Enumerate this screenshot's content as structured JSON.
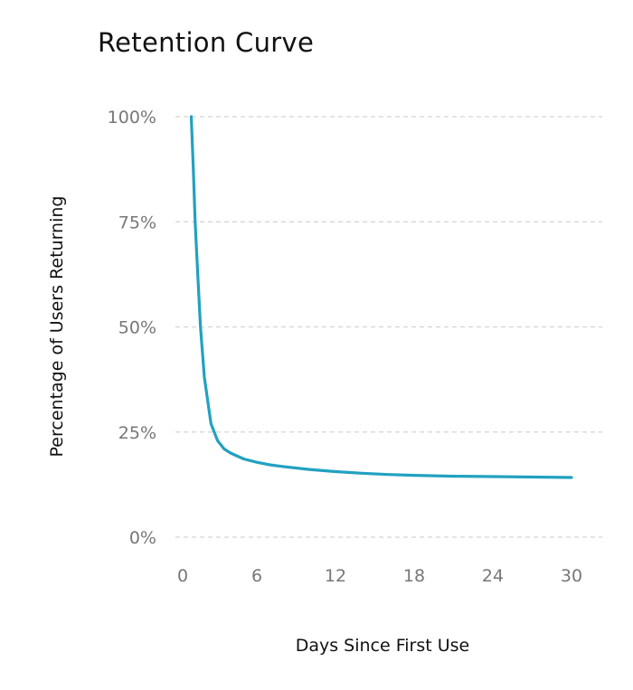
{
  "chart_data": {
    "type": "line",
    "title": "Retention Curve",
    "xlabel": "Days Since First Use",
    "ylabel": "Percentage of Users Returning",
    "xlim": [
      0,
      30
    ],
    "ylim": [
      0,
      100
    ],
    "xticks": [
      0,
      6,
      12,
      18,
      24,
      30
    ],
    "xtick_labels": [
      "0",
      "6",
      "12",
      "18",
      "24",
      "30"
    ],
    "yticks": [
      0,
      25,
      50,
      75,
      100
    ],
    "ytick_labels": [
      "0%",
      "25%",
      "50%",
      "75%",
      "100%"
    ],
    "grid": "horizontal dashed",
    "series": [
      {
        "name": "Retention",
        "color": "#22a1c0",
        "x": [
          1,
          1.15,
          1.3,
          1.5,
          1.7,
          2.0,
          2.5,
          3.0,
          3.5,
          4.0,
          5.0,
          6.0,
          7.0,
          8.0,
          10.0,
          12.0,
          14.0,
          16.0,
          18.0,
          21.0,
          24.0,
          27.0,
          30.0
        ],
        "y": [
          100,
          88,
          75,
          62,
          50,
          38,
          27,
          23,
          21,
          20,
          18.6,
          17.8,
          17.2,
          16.8,
          16.1,
          15.6,
          15.2,
          14.9,
          14.7,
          14.5,
          14.4,
          14.3,
          14.2
        ]
      }
    ]
  }
}
